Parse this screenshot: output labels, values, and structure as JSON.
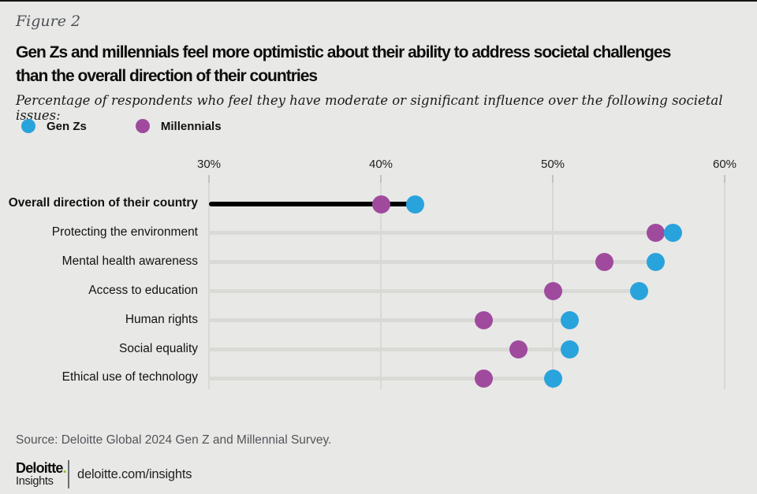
{
  "header": {
    "figure_label": "Figure 2",
    "title_lines": [
      "Gen Zs and millennials feel more optimistic about their ability to address societal challenges",
      "than the overall direction of their countries"
    ],
    "subtitle": "Percentage of respondents who feel they have moderate or significant influence over the following societal issues:"
  },
  "chart_data": {
    "type": "scatter",
    "variant": "dumbbell-dot-plot",
    "x_unit": "%",
    "xlim": [
      30,
      60
    ],
    "x_ticks": [
      30,
      40,
      50,
      60
    ],
    "x_tick_labels": [
      "30%",
      "40%",
      "50%",
      "60%"
    ],
    "grid": "vertical",
    "legend_position": "top-left",
    "categories": [
      "Overall direction of their country",
      "Protecting the environment",
      "Mental health awareness",
      "Access to education",
      "Human rights",
      "Social equality",
      "Ethical use of technology"
    ],
    "highlighted_category": "Overall direction of their country",
    "series": [
      {
        "name": "Gen Zs",
        "color": "#29a3dc",
        "values": [
          42,
          57,
          56,
          55,
          51,
          51,
          50
        ]
      },
      {
        "name": "Millennials",
        "color": "#a04a9e",
        "values": [
          40,
          56,
          53,
          50,
          46,
          48,
          46
        ]
      }
    ]
  },
  "source": "Source: Deloitte Global 2024 Gen Z and Millennial Survey.",
  "footer": {
    "brand": "Deloitte",
    "brand_dot": ".",
    "brand_sub": "Insights",
    "url": "deloitte.com/insights",
    "accent_green": "#86bc25"
  }
}
